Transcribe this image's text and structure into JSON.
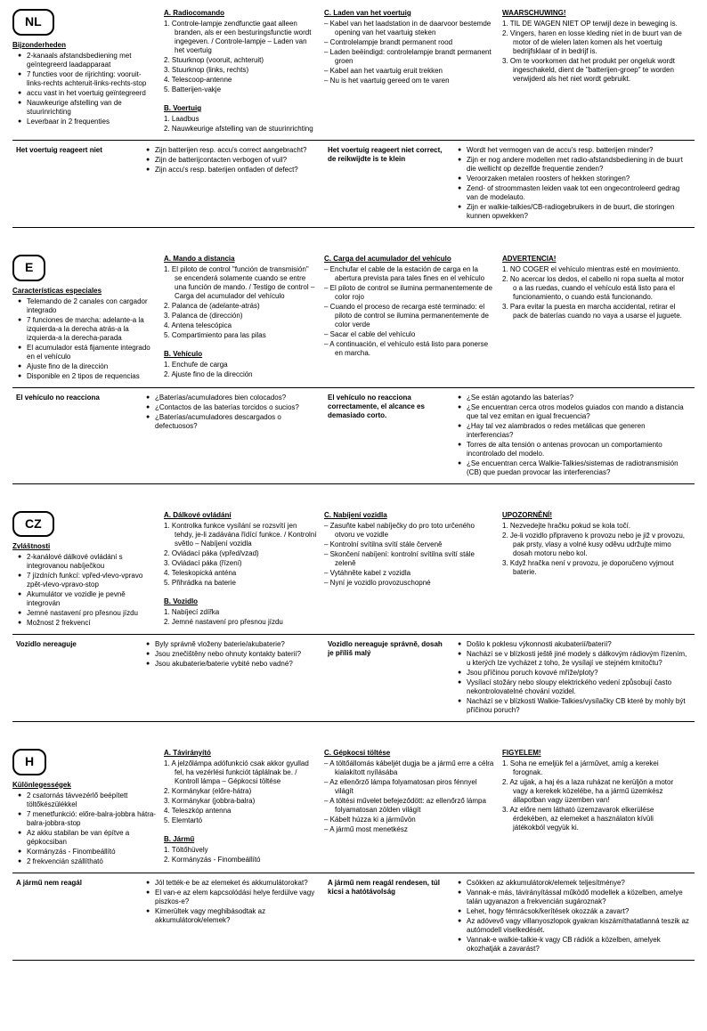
{
  "nl": {
    "badge": "NL",
    "col1": {
      "h": "Bijzonderheden",
      "items": [
        "2-kanaals afstandsbediening met geïntegreerd laadapparaat",
        "7 functies voor de rijrichting: vooruit-links-rechts achteruit-links-rechts-stop",
        "accu vast in het voertuig geïntegreerd",
        "Nauwkeurige afstelling van de stuurinrichting",
        "Leverbaar in 2 frequenties"
      ]
    },
    "col2": {
      "ha": "A. Radiocomando",
      "a": [
        "1. Controle-lampje zendfunctie gaat alleen branden, als er een besturingsfunctie wordt ingegeven. / Controle-lampje – Laden van het voertuig",
        "2. Stuurknop (vooruit, achteruit)",
        "3. Stuurknop (links, rechts)",
        "4. Telescoop-antenne",
        "5. Batterijen-vakje"
      ],
      "hb": "B. Voertuig",
      "b": [
        "1. Laadbus",
        "2. Nauwkeurige afstelling van de stuurinrichting"
      ]
    },
    "col3": {
      "h": "C. Laden van het voertuig",
      "items": [
        "– Kabel van het laadstation in de daarvoor bestemde opening van het vaartuig steken",
        "– Controlelampje brandt permanent rood",
        "– Laden beëindigd: controlelampje brandt permanent groen",
        "– Kabel aan het vaartuig eruit trekken",
        "– Nu is het vaartuig gereed om te varen"
      ]
    },
    "col4": {
      "h": "WAARSCHUWING!",
      "items": [
        "1. TIL DE WAGEN NIET OP terwijl deze in beweging is.",
        "2. Vingers, haren en losse kleding niet in de buurt van de motor of de wielen laten komen als het voertuig bedrijfsklaar of in bedrijf is.",
        "3. Om te voorkomen dat het produkt per ongeluk wordt ingeschakeld, dient de \"batterijen-groep\" te worden verwijderd als het niet wordt gebruikt."
      ]
    },
    "trouble": {
      "t1": "Het voertuig reageert niet",
      "t2": [
        "Zijn batterijen resp. accu's correct aangebracht?",
        "Zijn de batterijcontacten verbogen of vuil?",
        "Zijn accu's resp. baterijen ontladen of defect?"
      ],
      "t3": "Het voertuig reageert niet correct, de reikwijdte is te klein",
      "t4": [
        "Wordt het vermogen van de accu's resp. batterijen minder?",
        "Zijn er nog andere modellen met radio-afstandsbediening in de buurt die wellicht op dezelfde frequentie zenden?",
        "Veroorzaken metalen roosters of hekken storingen?",
        "Zend- of stroommasten leiden vaak tot een ongecontroleerd gedrag van de modelauto.",
        "Zijn er walkie-talkies/CB-radiogebruikers in de buurt, die storingen kunnen opwekken?"
      ]
    }
  },
  "e": {
    "badge": "E",
    "col1": {
      "h": "Características especiales",
      "items": [
        "Telemando de 2 canales con cargador integrado",
        "7 funciones de marcha: adelante-a la izquierda-a la derecha atrás-a la izquierda-a la derecha-parada",
        "El acumulador está fijamente integrado en el vehículo",
        "Ajuste fino de la dirección",
        "Disponible en 2 tipos de requencias"
      ]
    },
    "col2": {
      "ha": "A. Mando a distancia",
      "a": [
        "1. El piloto de control \"función de transmisión\" se encenderá solamente cuando se entre una función de mando. / Testigo de control – Carga del acumulador del vehículo",
        "2. Palanca de (adelante-atrás)",
        "3. Palanca de (dirección)",
        "4. Antena telescópica",
        "5. Compartimiento para las pilas"
      ],
      "hb": "B. Vehículo",
      "b": [
        "1. Enchufe de carga",
        "2. Ajuste fino de la dirección"
      ]
    },
    "col3": {
      "h": "C. Carga del acumulador del vehículo",
      "items": [
        "– Enchufar el cable de la estación de carga en la abertura prevista para tales fines en el vehículo",
        "– El piloto de control se ilumina permanentemente de color rojo",
        "– Cuando el proceso de recarga esté terminado: el piloto de control se ilumina permanentemente de color verde",
        "– Sacar el cable del vehículo",
        "– A continuación, el vehículo está listo para ponerse en marcha."
      ]
    },
    "col4": {
      "h": "ADVERTENCIA!",
      "items": [
        "1. NO COGER el vehículo mientras esté en movimiento.",
        "2. No acercar los dedos, el cabello ni ropa suelta al motor o a las ruedas, cuando el vehículo está listo para el funcionamiento, o cuando está funcionando.",
        "3. Para evitar la puesta en marcha accidental, retirar el pack de baterías cuando no vaya a usarse el juguete."
      ]
    },
    "trouble": {
      "t1": "El vehículo no reacciona",
      "t2": [
        "¿Baterías/acumuladores bien colocados?",
        "¿Contactos de las baterías torcidos o sucios?",
        "¿Baterías/acumuladores descargados o defectuosos?"
      ],
      "t3": "El vehículo no reacciona correctamente, el alcance es demasiado corto.",
      "t4": [
        "¿Se están agotando las baterías?",
        "¿Se encuentran cerca otros modelos guiados con mando a distancia que tal vez emitan en igual frecuencia?",
        "¿Hay tal vez alambrados o redes metálicas que generen interferencias?",
        "Torres de alta tensión o antenas provocan un comportamiento incontrolado del modelo.",
        "¿Se encuentran cerca Walkie-Talkies/sistemas de radiotransmisión (CB) que puedan provocar las interferencias?"
      ]
    }
  },
  "cz": {
    "badge": "CZ",
    "col1": {
      "h": "Zvláštnosti",
      "items": [
        "2-kanálové dálkové ovládání s integrovanou nabíječkou",
        "7 jízdních funkcí: vpřed-vlevo-vpravo zpět-vlevo-vpravo-stop",
        "Akumulátor ve vozidle je pevně integrován",
        "Jemné nastavení pro přesnou jízdu",
        "Možnost 2 frekvencí"
      ]
    },
    "col2": {
      "ha": "A. Dálkové ovládání",
      "a": [
        "1. Kontrolka funkce vysílání se rozsvítí jen tehdy, je-li zadávána řídící funkce. / Kontrolní světlo – Nabíjení vozidla",
        "2. Ovládací páka (vpřed/vzad)",
        "3. Ovládací páka (řízení)",
        "4. Teleskopická anténa",
        "5. Přihrádka na baterie"
      ],
      "hb": "B. Vozidlo",
      "b": [
        "1. Nabíjecí zdířka",
        "2. Jemné nastavení pro přesnou jízdu"
      ]
    },
    "col3": {
      "h": "C. Nabíjení vozidla",
      "items": [
        "– Zasuňte kabel nabíječky do pro toto určeného otvoru ve vozidle",
        "– Kontrolní svítilna svítí stále červeně",
        "– Skončení nabíjení: kontrolní svítilna svítí stále zeleně",
        "– Vytáhněte kabel z vozidla",
        "– Nyní je vozidlo provozuschopné"
      ]
    },
    "col4": {
      "h": "UPOZORNĚNÍ!",
      "items": [
        "1. Nezvedejte hračku pokud se kola točí.",
        "2. Je-li vozidlo připraveno k provozu nebo je již v provozu, pak prsty, vlasy a volné kusy oděvu udržujte mimo dosah motoru nebo kol.",
        "3. Když hračka není v provozu, je doporučeno vyjmout baterie."
      ]
    },
    "trouble": {
      "t1": "Vozidlo nereaguje",
      "t2": [
        "Byly správně vloženy baterie/akubaterie?",
        "Jsou znečištěny nebo ohnuty kontakty baterií?",
        "Jsou akubaterie/baterie vybité nebo vadné?"
      ],
      "t3": "Vozidlo nereaguje správně, dosah je příliš malý",
      "t4": [
        "Došlo k poklesu výkonnosti akubaterií/baterií?",
        "Nachází se v blízkosti ještě jiné modely s dálkovým rádiovým řízením, u kterých lze vycházet z toho, že vysílají ve stejném kmitočtu?",
        "Jsou příčinou poruch kovové mříže/ploty?",
        "Vysílací stožáry nebo sloupy elektrického vedení způsobují často nekontrolovatelné chování vozidel.",
        "Nachází se v blízkosti Walkie-Talkies/vysílačky CB které by mohly být příčinou poruch?"
      ]
    }
  },
  "h": {
    "badge": "H",
    "col1": {
      "h": "Különlegességek",
      "items": [
        "2 csatornás távvezérlő beépített töltőkészülékkel",
        "7 menetfunkció: előre-balra-jobbra hátra-balra-jobbra-stop",
        "Az akku stabilan be van építve a gépkocsiban",
        "Kormányzás - Finombeállító",
        "2 frekvencián szállítható"
      ]
    },
    "col2": {
      "ha": "A. Távirányító",
      "a": [
        "1. A jelzőlámpa adófunkció csak akkor gyullad fel, ha vezérlési funkciót táplálnak be. / Kontroll lámpa – Gépkocsi töltése",
        "2. Kormánykar (előre-hátra)",
        "3. Kormánykar (jobbra-balra)",
        "4. Teleszkóp antenna",
        "5. Elemtartó"
      ],
      "hb": "B. Jármű",
      "b": [
        "1. Töltőhüvely",
        "2. Kormányzás - Finombeállító"
      ]
    },
    "col3": {
      "h": "C. Gépkocsi töltése",
      "items": [
        "– A töltőállomás kábeljét dugja be a jármű erre a célra kialakított nyílásába",
        "– Az ellenőrző lámpa folyamatosan piros fénnyel világít",
        "– A töltési művelet befejeződött: az ellenőrző lámpa folyamatosan zölden világít",
        "– Kábelt húzza ki a járművön",
        "– A jármű most menetkész"
      ]
    },
    "col4": {
      "h": "FIGYELEM!",
      "items": [
        "1. Soha ne emeljük fel a járművet, amíg a kerekei forognak.",
        "2. Az ujjak, a haj és a laza ruházat ne kerüljön a motor vagy a kerekek közelébe, ha a jármű üzemkész állapotban vagy üzemben van!",
        "3. Az előre nem látható üzemzavarok elkerülése érdekében, az elemeket a használaton kívüli játékokból vegyük ki."
      ]
    },
    "trouble": {
      "t1": "A jármű nem reagál",
      "t2": [
        "Jól tették-e be az elemeket és akkumulátorokat?",
        "El van-e az elem kapcsolódási helye ferdülve vagy piszkos-e?",
        "Kimerültek vagy meghibásodtak az akkumulátorok/elemek?"
      ],
      "t3": "A jármű nem reagál rendesen, túl kicsi a hatótávolság",
      "t4": [
        "Csökken az akkumulátorok/elemek teljesítménye?",
        "Vannak-e más, távirányítással működő modellek a közelben, amelye talán ugyanazon a frekvencián sugároznak?",
        "Lehet, hogy fémrácsok/kerítések okozzák a zavart?",
        "Az adóvevő vagy villanyoszlopok gyakran kiszámíthatatlanná teszik az autómodell viselkedését.",
        "Vannak-e walkie-talkie-k vagy CB rádiók a közelben, amelyek okozhatják a zavarást?"
      ]
    }
  }
}
